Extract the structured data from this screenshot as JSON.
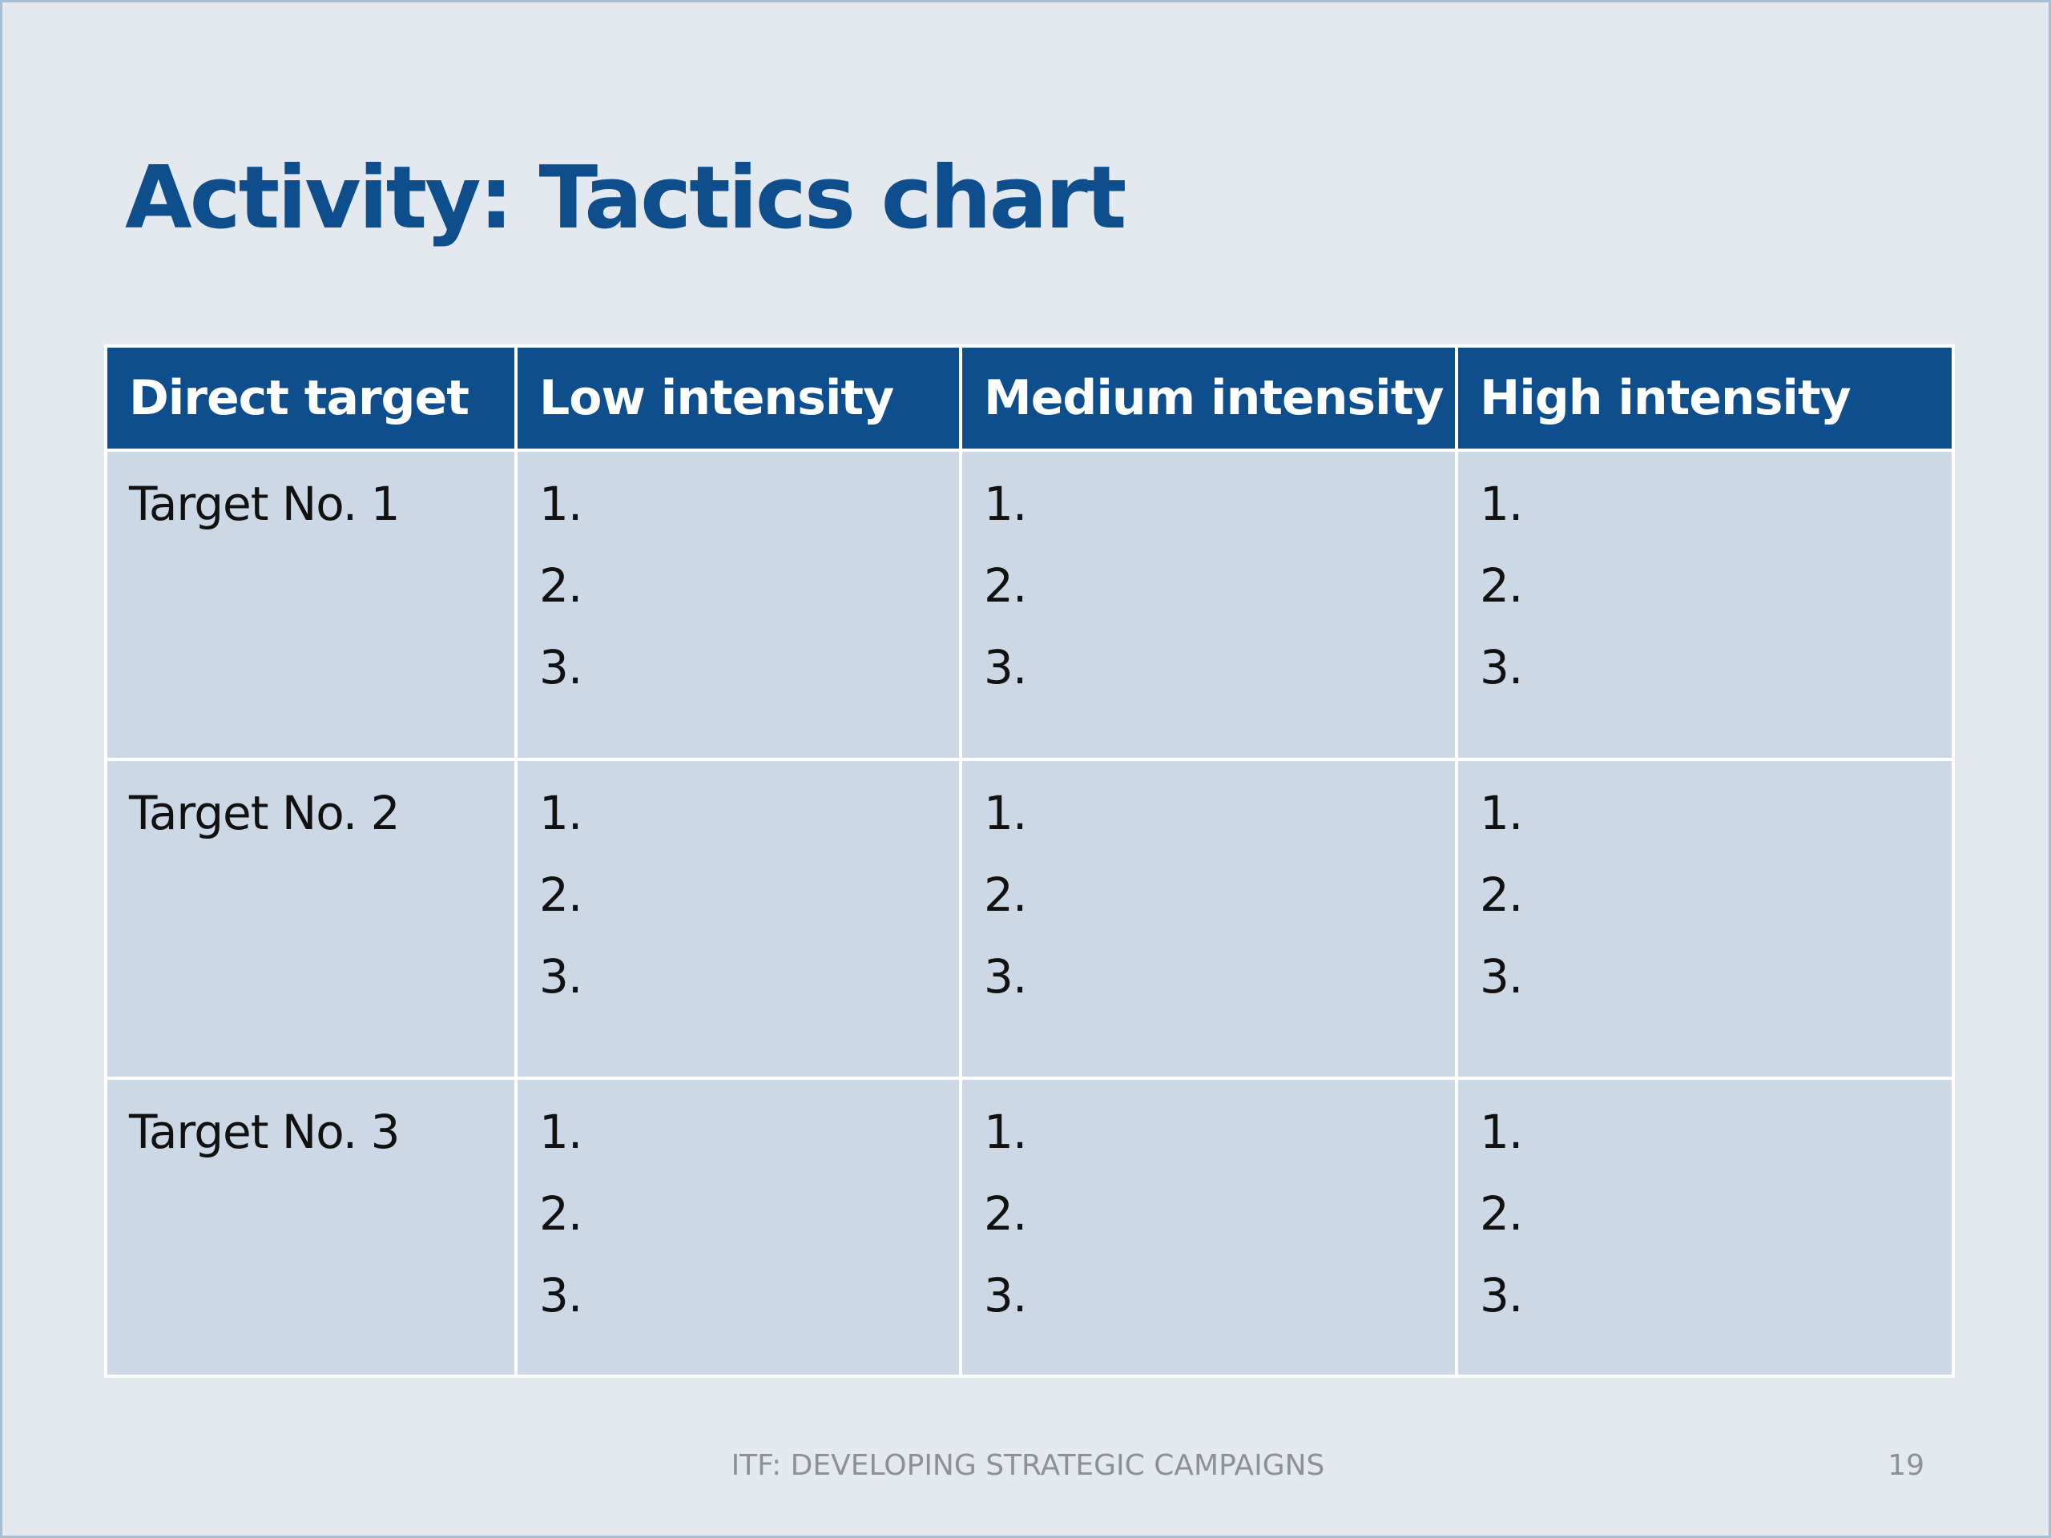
{
  "slide": {
    "title": "Activity: Tactics chart",
    "footer": "ITF: DEVELOPING STRATEGIC CAMPAIGNS",
    "page_number": "19"
  },
  "table": {
    "headers": [
      "Direct target",
      "Low intensity",
      "Medium intensity",
      "High intensity"
    ],
    "rows": [
      {
        "target": "Target No. 1",
        "cells": [
          [
            "1.",
            "2.",
            "3."
          ],
          [
            "1.",
            "2.",
            "3."
          ],
          [
            "1.",
            "2.",
            "3."
          ]
        ]
      },
      {
        "target": "Target No. 2",
        "cells": [
          [
            "1.",
            "2.",
            "3."
          ],
          [
            "1.",
            "2.",
            "3."
          ],
          [
            "1.",
            "2.",
            "3."
          ]
        ]
      },
      {
        "target": "Target No. 3",
        "cells": [
          [
            "1.",
            "2.",
            "3."
          ],
          [
            "1.",
            "2.",
            "3."
          ],
          [
            "1.",
            "2.",
            "3."
          ]
        ]
      }
    ]
  },
  "colors": {
    "title": "#0f4e8d",
    "header_bg": "#0e4e8d",
    "cell_bg": "#ccd8e6",
    "slide_bg": "#e4e9f0"
  }
}
